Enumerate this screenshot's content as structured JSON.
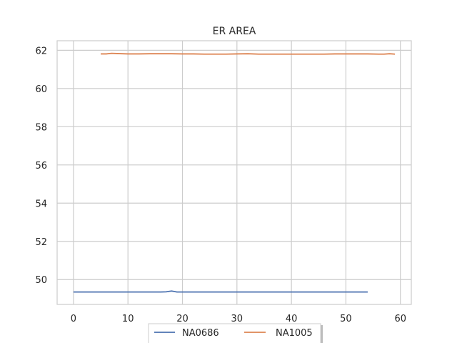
{
  "chart_data": {
    "type": "line",
    "title": "ER AREA",
    "xlabel": "",
    "ylabel": "",
    "xlim": [
      -3,
      62
    ],
    "ylim": [
      48.7,
      62.5
    ],
    "xticks": [
      0,
      10,
      20,
      30,
      40,
      50,
      60
    ],
    "yticks": [
      50,
      52,
      54,
      56,
      58,
      60,
      62
    ],
    "grid": true,
    "legend_position": "bottom-center",
    "series": [
      {
        "name": "NA0686",
        "color": "#4c72b0",
        "x": [
          0,
          2,
          4,
          6,
          8,
          10,
          12,
          14,
          16,
          17,
          18,
          19,
          20,
          22,
          24,
          26,
          28,
          30,
          32,
          34,
          36,
          38,
          40,
          42,
          44,
          46,
          48,
          50,
          52,
          54
        ],
        "y": [
          49.35,
          49.35,
          49.35,
          49.35,
          49.35,
          49.35,
          49.35,
          49.35,
          49.35,
          49.36,
          49.4,
          49.35,
          49.35,
          49.35,
          49.35,
          49.35,
          49.35,
          49.35,
          49.35,
          49.35,
          49.35,
          49.35,
          49.35,
          49.35,
          49.35,
          49.35,
          49.35,
          49.35,
          49.35,
          49.35
        ]
      },
      {
        "name": "NA1005",
        "color": "#dd8452",
        "x": [
          5,
          6,
          7,
          8,
          9,
          10,
          12,
          14,
          16,
          18,
          20,
          22,
          24,
          26,
          28,
          30,
          32,
          34,
          36,
          38,
          40,
          42,
          44,
          46,
          48,
          50,
          52,
          54,
          56,
          57,
          58,
          59
        ],
        "y": [
          61.81,
          61.81,
          61.84,
          61.83,
          61.82,
          61.81,
          61.81,
          61.82,
          61.82,
          61.82,
          61.81,
          61.81,
          61.8,
          61.8,
          61.8,
          61.81,
          61.82,
          61.8,
          61.8,
          61.8,
          61.8,
          61.8,
          61.8,
          61.8,
          61.81,
          61.81,
          61.81,
          61.81,
          61.8,
          61.8,
          61.82,
          61.8
        ]
      }
    ]
  }
}
